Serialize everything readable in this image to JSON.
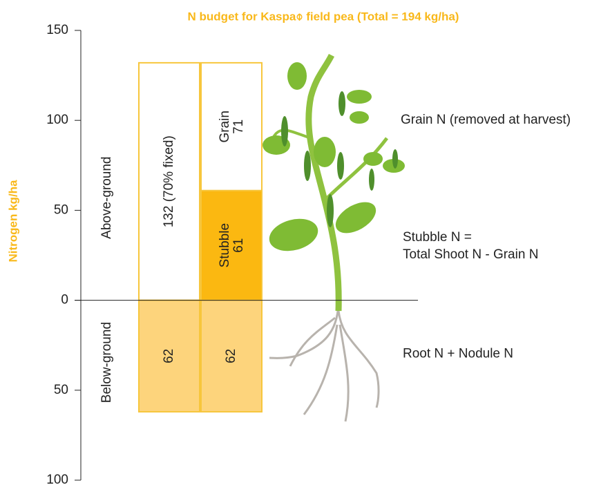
{
  "chart_data": {
    "type": "stacked-column-diagram",
    "title": "N budget for Kaspa⌽ field pea (Total = 194 kg/ha)",
    "ylabel": "Nitrogen kg/ha",
    "ylim": [
      -100,
      150
    ],
    "yticks": [
      150,
      100,
      50,
      0,
      {
        "value": -50,
        "label": "50"
      },
      {
        "value": -100,
        "label": "100"
      }
    ],
    "regions": [
      "Above-ground",
      "Below-ground"
    ],
    "bars": [
      {
        "segments": [
          {
            "value": 132,
            "value_label": "132 (70% fixed)",
            "color": "#ffffff"
          },
          {
            "value": -62,
            "value_label": "62",
            "color": "#fdd47c"
          }
        ]
      },
      {
        "segments": [
          {
            "name": "Stubble",
            "value": 61,
            "value_label": "61",
            "color": "#fbb811"
          },
          {
            "name": "Grain",
            "value": 71,
            "value_label": "71",
            "color": "#ffffff"
          },
          {
            "value": -62,
            "value_label": "62",
            "color": "#fdd47c"
          }
        ]
      }
    ],
    "annotations": [
      {
        "lines": [
          "Grain N (removed at harvest)"
        ],
        "value": 100
      },
      {
        "lines": [
          "Stubble N =",
          "Total Shoot N - Grain N"
        ],
        "value": 30
      },
      {
        "lines": [
          "Root N + Nodule N"
        ],
        "value": -30
      }
    ]
  }
}
